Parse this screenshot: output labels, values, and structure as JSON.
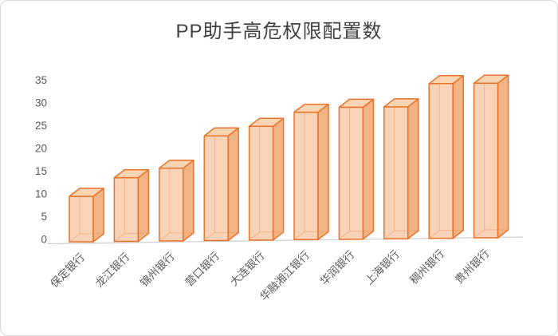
{
  "chart": {
    "title": "PP助手高危权限配置数"
  },
  "chart_data": {
    "type": "bar",
    "variant": "3d-column",
    "title": "PP助手高危权限配置数",
    "categories": [
      "保定银行",
      "龙江银行",
      "锦州银行",
      "营口银行",
      "大连银行",
      "华融湘江银行",
      "华润银行",
      "上海银行",
      "稠州银行",
      "贵州银行"
    ],
    "values": [
      10,
      14,
      16,
      23,
      25,
      28,
      29,
      29,
      34,
      34
    ],
    "xlabel": "",
    "ylabel": "",
    "ylim": [
      0,
      35
    ],
    "ytick_step": 5,
    "yticks": [
      0,
      5,
      10,
      15,
      20,
      25,
      30,
      35
    ],
    "grid": false,
    "legend": "none",
    "colors": {
      "bar_edge": "#E8732A",
      "bar_front": "#F5B687",
      "bar_top": "#FAD3AF",
      "bar_side": "#F0A167",
      "axis_text": "#595959",
      "title_text": "#404040",
      "floor_line": "#CFCFCF",
      "border": "#D9D9D9",
      "background": "#FFFFFF"
    }
  }
}
